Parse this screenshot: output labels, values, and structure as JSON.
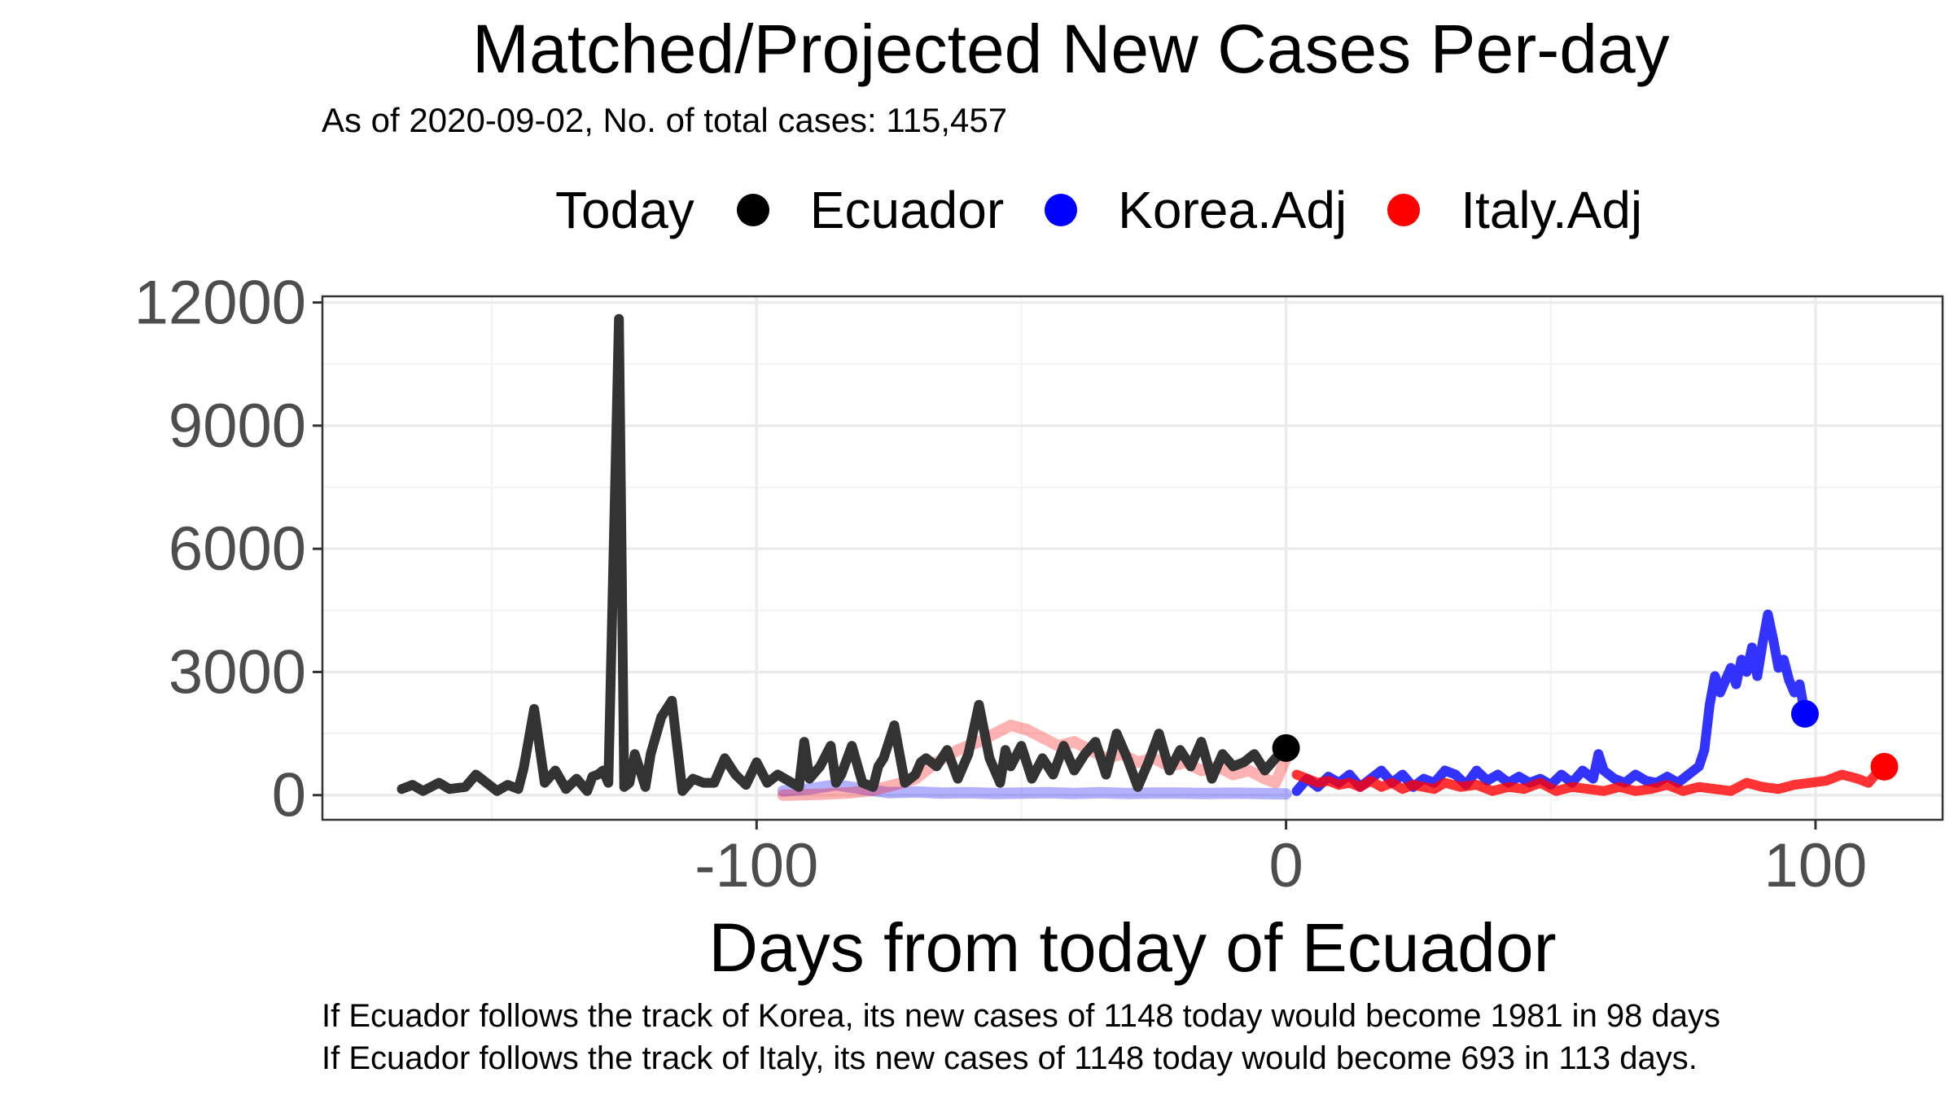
{
  "chart_data": {
    "type": "line",
    "title": "Matched/Projected New Cases Per-day",
    "subtitle": "As of 2020-09-02, No. of total cases: 115,457",
    "xlabel": "Days from today of Ecuador",
    "ylabel": "",
    "xlim": [
      -182,
      124
    ],
    "ylim": [
      -600,
      12150
    ],
    "x_ticks": [
      -100,
      0,
      100
    ],
    "y_ticks": [
      0,
      3000,
      6000,
      9000,
      12000
    ],
    "grid": true,
    "legend": {
      "title": "Today",
      "placement": "top",
      "entries": [
        "Ecuador",
        "Korea.Adj",
        "Italy.Adj"
      ]
    },
    "series": [
      {
        "name": "Ecuador",
        "color": "#000000",
        "x": [
          -167,
          -165,
          -163,
          -160,
          -158,
          -155,
          -153,
          -151,
          -149,
          -147,
          -145,
          -144,
          -142,
          -140,
          -138,
          -136,
          -134,
          -132,
          -131,
          -130,
          -129,
          -128,
          -126,
          -125,
          -124,
          -123,
          -121,
          -120,
          -118,
          -116,
          -114,
          -112,
          -110,
          -108,
          -106,
          -104,
          -102,
          -100,
          -98,
          -96,
          -94,
          -92,
          -91,
          -90,
          -88,
          -86,
          -85,
          -84,
          -82,
          -80,
          -78,
          -77,
          -76,
          -74,
          -72,
          -70,
          -69,
          -68,
          -66,
          -64,
          -62,
          -60,
          -58,
          -56,
          -54,
          -53,
          -52,
          -50,
          -48,
          -46,
          -44,
          -42,
          -40,
          -38,
          -36,
          -34,
          -32,
          -30,
          -28,
          -26,
          -24,
          -22,
          -20,
          -18,
          -16,
          -14,
          -12,
          -10,
          -8,
          -6,
          -4,
          -2,
          0
        ],
        "values": [
          150,
          250,
          100,
          300,
          150,
          200,
          500,
          300,
          100,
          250,
          150,
          650,
          2100,
          300,
          600,
          150,
          400,
          100,
          450,
          500,
          600,
          300,
          11600,
          200,
          300,
          1000,
          200,
          1000,
          1900,
          2300,
          100,
          400,
          300,
          300,
          900,
          500,
          250,
          800,
          300,
          500,
          350,
          200,
          1300,
          400,
          700,
          1200,
          300,
          500,
          1200,
          300,
          200,
          700,
          900,
          1700,
          300,
          500,
          800,
          900,
          700,
          1100,
          400,
          1000,
          2200,
          900,
          300,
          1100,
          700,
          1200,
          400,
          900,
          500,
          1200,
          600,
          1000,
          1300,
          500,
          1500,
          900,
          200,
          800,
          1500,
          600,
          1100,
          700,
          1300,
          400,
          1000,
          700,
          800,
          1000,
          600,
          900,
          1148
        ]
      },
      {
        "name": "Korea.Adj",
        "color": "#0000ff",
        "x": [
          -95,
          -90,
          -85,
          -80,
          -75,
          -70,
          -65,
          -60,
          -55,
          -50,
          -45,
          -40,
          -35,
          -30,
          -25,
          -20,
          -15,
          -10,
          -5,
          0,
          2,
          4,
          6,
          8,
          10,
          12,
          14,
          16,
          18,
          20,
          22,
          24,
          26,
          28,
          30,
          32,
          34,
          36,
          38,
          40,
          42,
          44,
          46,
          48,
          50,
          52,
          54,
          56,
          58,
          59,
          60,
          62,
          64,
          66,
          68,
          70,
          72,
          74,
          76,
          78,
          79,
          80,
          81,
          82,
          83,
          84,
          85,
          86,
          87,
          88,
          89,
          90,
          91,
          92,
          93,
          94,
          95,
          96,
          97,
          98
        ],
        "values": [
          100,
          150,
          250,
          150,
          60,
          80,
          50,
          60,
          40,
          50,
          60,
          40,
          60,
          40,
          50,
          50,
          40,
          50,
          40,
          30,
          100,
          400,
          200,
          450,
          300,
          500,
          200,
          400,
          600,
          300,
          500,
          200,
          400,
          300,
          600,
          500,
          250,
          600,
          350,
          500,
          300,
          450,
          300,
          400,
          250,
          500,
          300,
          600,
          400,
          1000,
          600,
          400,
          300,
          500,
          350,
          300,
          450,
          300,
          500,
          700,
          1100,
          2200,
          2900,
          2500,
          2800,
          3100,
          2700,
          3300,
          3000,
          3600,
          2900,
          3700,
          4400,
          3800,
          3100,
          3300,
          2800,
          2500,
          2700,
          1981
        ]
      },
      {
        "name": "Italy.Adj",
        "color": "#ff0000",
        "x": [
          -95,
          -88,
          -82,
          -78,
          -74,
          -70,
          -66,
          -62,
          -58,
          -55,
          -52,
          -49,
          -46,
          -43,
          -40,
          -37,
          -34,
          -31,
          -28,
          -25,
          -22,
          -19,
          -16,
          -13,
          -10,
          -7,
          -4,
          -2,
          0,
          2,
          4,
          6,
          8,
          10,
          12,
          14,
          16,
          18,
          20,
          22,
          24,
          26,
          28,
          30,
          33,
          36,
          39,
          42,
          45,
          48,
          51,
          54,
          57,
          60,
          63,
          66,
          69,
          72,
          75,
          78,
          81,
          84,
          87,
          90,
          93,
          96,
          99,
          102,
          105,
          108,
          110,
          112,
          113
        ],
        "values": [
          0,
          20,
          60,
          120,
          250,
          400,
          800,
          1100,
          1300,
          1500,
          1700,
          1600,
          1400,
          1200,
          1300,
          1100,
          900,
          1000,
          800,
          900,
          700,
          800,
          600,
          700,
          500,
          600,
          400,
          300,
          900,
          500,
          400,
          300,
          350,
          250,
          300,
          200,
          350,
          200,
          300,
          150,
          250,
          200,
          150,
          300,
          200,
          250,
          100,
          200,
          150,
          300,
          100,
          200,
          150,
          100,
          200,
          100,
          150,
          250,
          100,
          200,
          150,
          100,
          300,
          200,
          150,
          250,
          300,
          350,
          500,
          400,
          300,
          600,
          693
        ]
      }
    ],
    "today_points": [
      {
        "series": "Ecuador",
        "x": 0,
        "y": 1148
      },
      {
        "series": "Korea.Adj",
        "x": 98,
        "y": 1981
      },
      {
        "series": "Italy.Adj",
        "x": 113,
        "y": 693
      }
    ],
    "footnotes": [
      "If Ecuador follows the track of Korea, its new cases of 1148 today would become 1981 in 98 days",
      "If Ecuador follows the track of Italy, its new cases of 1148 today would become 693 in 113 days."
    ]
  }
}
